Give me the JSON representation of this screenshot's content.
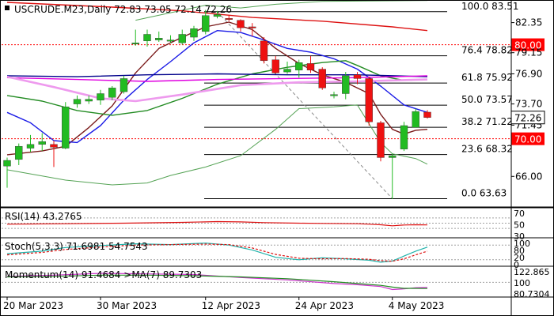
{
  "chart_data": {
    "type": "candlestick",
    "symbol_line": "USCRUDE.M23,Daily  72.83 73.05 72.14 72.26",
    "price_scale": {
      "ylim": [
        63.0,
        84.5
      ],
      "ticks": [
        "82.35",
        "79.15",
        "76.90",
        "73.70",
        "71.45",
        "66.00"
      ],
      "ticks_values": [
        82.35,
        79.15,
        76.9,
        73.7,
        71.45,
        66.0
      ]
    },
    "date_labels": [
      {
        "label": "20 Mar 2023",
        "index": 0
      },
      {
        "label": "30 Mar 2023",
        "index": 8
      },
      {
        "label": "12 Apr 2023",
        "index": 17
      },
      {
        "label": "24 Apr 2023",
        "index": 25
      },
      {
        "label": "4 May 2023",
        "index": 33
      }
    ],
    "candles": [
      {
        "o": 67.1,
        "h": 68.0,
        "l": 64.8,
        "c": 67.7
      },
      {
        "o": 67.8,
        "h": 69.5,
        "l": 67.2,
        "c": 69.2
      },
      {
        "o": 69.0,
        "h": 70.4,
        "l": 68.6,
        "c": 69.4
      },
      {
        "o": 69.4,
        "h": 70.6,
        "l": 68.7,
        "c": 69.7
      },
      {
        "o": 69.4,
        "h": 69.8,
        "l": 67.0,
        "c": 69.1
      },
      {
        "o": 69.0,
        "h": 73.9,
        "l": 68.9,
        "c": 73.4
      },
      {
        "o": 73.7,
        "h": 74.6,
        "l": 73.3,
        "c": 74.2
      },
      {
        "o": 74.0,
        "h": 74.6,
        "l": 73.7,
        "c": 74.2
      },
      {
        "o": 74.1,
        "h": 75.2,
        "l": 73.6,
        "c": 74.8
      },
      {
        "o": 74.4,
        "h": 75.6,
        "l": 74.1,
        "c": 75.4
      },
      {
        "o": 75.0,
        "h": 76.7,
        "l": 74.8,
        "c": 76.4
      },
      {
        "o": 80.1,
        "h": 81.6,
        "l": 79.9,
        "c": 80.2
      },
      {
        "o": 80.4,
        "h": 81.6,
        "l": 79.8,
        "c": 81.1
      },
      {
        "o": 80.5,
        "h": 81.4,
        "l": 80.3,
        "c": 80.7
      },
      {
        "o": 80.5,
        "h": 81.0,
        "l": 80.2,
        "c": 80.5
      },
      {
        "o": 80.2,
        "h": 81.6,
        "l": 80.0,
        "c": 81.1
      },
      {
        "o": 80.8,
        "h": 82.0,
        "l": 80.4,
        "c": 81.7
      },
      {
        "o": 81.4,
        "h": 83.7,
        "l": 81.1,
        "c": 83.1
      },
      {
        "o": 83.0,
        "h": 83.6,
        "l": 82.8,
        "c": 83.2
      },
      {
        "o": 82.8,
        "h": 83.1,
        "l": 82.5,
        "c": 82.7
      },
      {
        "o": 82.6,
        "h": 82.7,
        "l": 81.4,
        "c": 81.8
      },
      {
        "o": 81.9,
        "h": 82.3,
        "l": 80.9,
        "c": 81.8
      },
      {
        "o": 80.4,
        "h": 80.8,
        "l": 78.0,
        "c": 78.3
      },
      {
        "o": 78.4,
        "h": 78.8,
        "l": 76.9,
        "c": 77.0
      },
      {
        "o": 77.1,
        "h": 78.2,
        "l": 76.9,
        "c": 77.4
      },
      {
        "o": 77.3,
        "h": 78.4,
        "l": 76.5,
        "c": 78.1
      },
      {
        "o": 78.0,
        "h": 78.8,
        "l": 77.0,
        "c": 77.3
      },
      {
        "o": 77.4,
        "h": 77.6,
        "l": 75.2,
        "c": 75.4
      },
      {
        "o": 74.6,
        "h": 75.0,
        "l": 74.3,
        "c": 74.7
      },
      {
        "o": 74.8,
        "h": 77.1,
        "l": 74.2,
        "c": 76.7
      },
      {
        "o": 76.8,
        "h": 77.1,
        "l": 75.8,
        "c": 76.4
      },
      {
        "o": 76.4,
        "h": 76.6,
        "l": 71.4,
        "c": 71.8
      },
      {
        "o": 71.7,
        "h": 71.9,
        "l": 67.6,
        "c": 68.0
      },
      {
        "o": 68.0,
        "h": 68.4,
        "l": 63.6,
        "c": 68.2
      },
      {
        "o": 68.9,
        "h": 71.8,
        "l": 68.7,
        "c": 71.4
      },
      {
        "o": 71.2,
        "h": 73.2,
        "l": 71.2,
        "c": 72.9
      },
      {
        "o": 72.83,
        "h": 73.05,
        "l": 72.14,
        "c": 72.26
      }
    ],
    "ma_series": [
      {
        "color": "#7a1a1a",
        "width": 1.4,
        "points": [
          [
            0,
            68.3
          ],
          [
            3,
            68.7
          ],
          [
            5,
            69.2
          ],
          [
            7,
            71.2
          ],
          [
            9,
            73.5
          ],
          [
            11,
            77.0
          ],
          [
            13,
            79.6
          ],
          [
            15,
            80.8
          ],
          [
            17,
            81.9
          ],
          [
            19,
            82.4
          ],
          [
            21,
            81.6
          ],
          [
            23,
            79.6
          ],
          [
            25,
            78.0
          ],
          [
            27,
            76.8
          ],
          [
            29,
            76.0
          ],
          [
            31,
            74.8
          ],
          [
            32,
            72.6
          ],
          [
            33,
            71.0
          ],
          [
            34,
            70.5
          ],
          [
            35,
            70.9
          ],
          [
            36,
            71.0
          ]
        ]
      },
      {
        "color": "#1a1ae6",
        "width": 1.4,
        "points": [
          [
            0,
            72.8
          ],
          [
            2,
            71.7
          ],
          [
            4,
            69.8
          ],
          [
            6,
            69.6
          ],
          [
            8,
            71.4
          ],
          [
            10,
            74.1
          ],
          [
            12,
            76.3
          ],
          [
            14,
            78.2
          ],
          [
            16,
            80.2
          ],
          [
            18,
            81.5
          ],
          [
            20,
            81.3
          ],
          [
            22,
            80.5
          ],
          [
            24,
            79.6
          ],
          [
            26,
            79.2
          ],
          [
            28,
            78.5
          ],
          [
            30,
            77.4
          ],
          [
            32,
            75.6
          ],
          [
            34,
            73.6
          ],
          [
            36,
            72.8
          ]
        ]
      },
      {
        "color": "#228b22",
        "width": 1.4,
        "points": [
          [
            0,
            74.6
          ],
          [
            3,
            74.0
          ],
          [
            6,
            73.0
          ],
          [
            9,
            72.5
          ],
          [
            12,
            73.0
          ],
          [
            15,
            74.3
          ],
          [
            18,
            75.8
          ],
          [
            21,
            76.9
          ],
          [
            24,
            77.6
          ],
          [
            27,
            78.1
          ],
          [
            29,
            78.3
          ],
          [
            30,
            77.8
          ],
          [
            32,
            76.7
          ],
          [
            34,
            76.2
          ],
          [
            36,
            76.3
          ]
        ]
      },
      {
        "color": "#00008b",
        "width": 1.4,
        "points": [
          [
            0,
            76.7
          ],
          [
            6,
            76.6
          ],
          [
            12,
            76.8
          ],
          [
            18,
            76.9
          ],
          [
            24,
            76.8
          ],
          [
            30,
            76.8
          ],
          [
            36,
            76.6
          ]
        ]
      },
      {
        "color": "#e000e0",
        "width": 1.4,
        "points": [
          [
            0,
            76.5
          ],
          [
            6,
            76.3
          ],
          [
            12,
            76.1
          ],
          [
            18,
            76.3
          ],
          [
            24,
            76.4
          ],
          [
            30,
            76.5
          ],
          [
            36,
            76.7
          ]
        ]
      },
      {
        "color": "#ee9aee",
        "width": 2.6,
        "points": [
          [
            0,
            76.6
          ],
          [
            4,
            75.5
          ],
          [
            8,
            74.3
          ],
          [
            11,
            74.0
          ],
          [
            15,
            74.7
          ],
          [
            20,
            75.7
          ],
          [
            25,
            76.0
          ],
          [
            30,
            76.1
          ],
          [
            36,
            76.3
          ]
        ]
      },
      {
        "color": "#dd1111",
        "width": 1.4,
        "points": [
          [
            0,
            84.5
          ],
          [
            9,
            84.0
          ],
          [
            15,
            83.6
          ],
          [
            21,
            82.9
          ],
          [
            27,
            82.5
          ],
          [
            33,
            81.9
          ],
          [
            36,
            81.5
          ]
        ]
      }
    ],
    "envelope_bands": {
      "color": "#55a355",
      "upper": [
        [
          11,
          82.6
        ],
        [
          14,
          83.4
        ],
        [
          17,
          84.2
        ],
        [
          20,
          83.9
        ],
        [
          23,
          84.3
        ],
        [
          27,
          84.6
        ],
        [
          36,
          84.7
        ]
      ],
      "lower": [
        [
          0,
          66.7
        ],
        [
          5,
          65.6
        ],
        [
          9,
          65.1
        ],
        [
          12,
          65.3
        ],
        [
          14,
          66.1
        ],
        [
          17,
          67.0
        ],
        [
          20,
          68.2
        ],
        [
          23,
          71.0
        ],
        [
          25,
          73.2
        ],
        [
          28,
          73.4
        ],
        [
          30,
          73.6
        ],
        [
          32,
          69.6
        ],
        [
          33,
          68.4
        ],
        [
          35,
          67.9
        ],
        [
          36,
          67.3
        ]
      ]
    },
    "fib_levels": [
      {
        "label": "100.0 83.51",
        "value": 83.51
      },
      {
        "label": "76.4 78.82",
        "value": 78.82
      },
      {
        "label": "61.8 75.92",
        "value": 75.92
      },
      {
        "label": "50.0 73.57",
        "value": 73.57
      },
      {
        "label": "38.2 71.22",
        "value": 71.22
      },
      {
        "label": "23.6 68.32",
        "value": 68.32
      },
      {
        "label": "0.0 63.63",
        "value": 63.63
      }
    ],
    "fib_trend_line": {
      "from": {
        "index": 18,
        "value": 83.51
      },
      "to": {
        "index": 33,
        "value": 63.63
      }
    },
    "horizontal_levels": [
      {
        "value": 80.0,
        "label": "80.00",
        "color": "#ff0000"
      },
      {
        "value": 70.0,
        "label": "70.00",
        "color": "#ff0000"
      }
    ],
    "current_price": {
      "value": 72.26,
      "label": "72.26"
    },
    "indicators": [
      {
        "title": "RSI(14) 43.2765",
        "scale_labels": [
          "70",
          "50",
          "30"
        ],
        "ylim": [
          0,
          100
        ],
        "levels": [
          70,
          50,
          30
        ],
        "series": [
          {
            "color": "#dd1111",
            "points": [
              [
                0,
                46
              ],
              [
                5,
                48
              ],
              [
                10,
                50
              ],
              [
                15,
                53
              ],
              [
                18,
                56
              ],
              [
                20,
                55
              ],
              [
                22,
                52
              ],
              [
                25,
                50
              ],
              [
                27,
                49
              ],
              [
                30,
                48
              ],
              [
                31,
                46
              ],
              [
                32,
                44
              ],
              [
                33,
                40
              ],
              [
                34,
                43
              ],
              [
                35,
                44
              ],
              [
                36,
                43.28
              ]
            ]
          }
        ]
      },
      {
        "title": "Stoch(5,3,3) 71.6981 54.7543",
        "scale_labels": [
          "100",
          "80",
          "20",
          "0"
        ],
        "ylim": [
          0,
          100
        ],
        "levels": [
          80,
          20
        ],
        "series": [
          {
            "color": "#20b2aa",
            "points": [
              [
                0,
                45
              ],
              [
                3,
                55
              ],
              [
                5,
                70
              ],
              [
                8,
                78
              ],
              [
                11,
                85
              ],
              [
                14,
                82
              ],
              [
                17,
                88
              ],
              [
                19,
                80
              ],
              [
                21,
                60
              ],
              [
                23,
                30
              ],
              [
                25,
                20
              ],
              [
                27,
                28
              ],
              [
                29,
                24
              ],
              [
                31,
                18
              ],
              [
                32,
                10
              ],
              [
                33,
                15
              ],
              [
                34,
                35
              ],
              [
                35,
                55
              ],
              [
                36,
                71.7
              ]
            ]
          },
          {
            "color": "#dd1111",
            "dash": "3,2",
            "points": [
              [
                0,
                40
              ],
              [
                3,
                50
              ],
              [
                5,
                62
              ],
              [
                8,
                72
              ],
              [
                11,
                80
              ],
              [
                14,
                82
              ],
              [
                17,
                84
              ],
              [
                19,
                82
              ],
              [
                21,
                68
              ],
              [
                23,
                42
              ],
              [
                25,
                26
              ],
              [
                27,
                24
              ],
              [
                29,
                25
              ],
              [
                31,
                22
              ],
              [
                32,
                16
              ],
              [
                33,
                14
              ],
              [
                34,
                24
              ],
              [
                35,
                40
              ],
              [
                36,
                54.75
              ]
            ]
          }
        ]
      },
      {
        "title": "Momentum(14) 91.4684  >MA(7) 89.7303",
        "scale_labels": [
          "122.865",
          "100",
          "80.7304"
        ],
        "ylim": [
          80.7304,
          122.865
        ],
        "levels": [
          100
        ],
        "series": [
          {
            "color": "#cc33cc",
            "points": [
              [
                0,
                110
              ],
              [
                4,
                112
              ],
              [
                8,
                115
              ],
              [
                12,
                114
              ],
              [
                16,
                113
              ],
              [
                20,
                108
              ],
              [
                24,
                104
              ],
              [
                28,
                98
              ],
              [
                30,
                96
              ],
              [
                32,
                93
              ],
              [
                33,
                88
              ],
              [
                34,
                89
              ],
              [
                35,
                91
              ],
              [
                36,
                91.47
              ]
            ]
          },
          {
            "color": "#228b22",
            "points": [
              [
                0,
                109
              ],
              [
                4,
                110
              ],
              [
                8,
                112
              ],
              [
                12,
                112
              ],
              [
                16,
                111
              ],
              [
                20,
                109
              ],
              [
                24,
                106
              ],
              [
                28,
                101
              ],
              [
                30,
                98
              ],
              [
                32,
                95
              ],
              [
                33,
                92
              ],
              [
                34,
                90
              ],
              [
                35,
                90
              ],
              [
                36,
                89.73
              ]
            ]
          }
        ]
      }
    ]
  }
}
